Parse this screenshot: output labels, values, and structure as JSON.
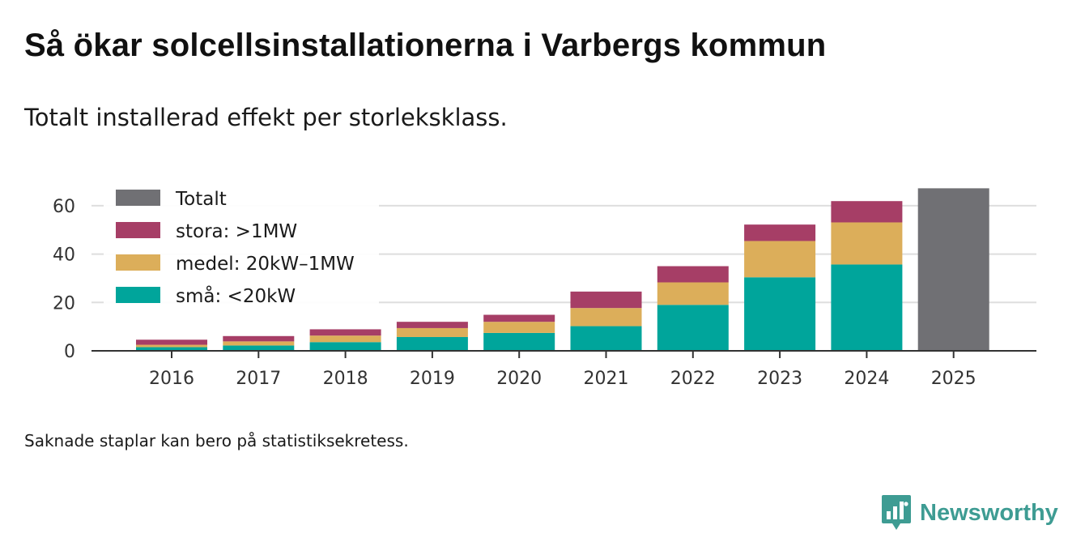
{
  "header": {
    "title": "Så ökar solcellsinstallationerna i Varbergs kommun",
    "subtitle": "Totalt installerad effekt per storleksklass."
  },
  "footer": {
    "note": "Saknade staplar kan bero på statistiksekretess.",
    "brand": "Newsworthy"
  },
  "colors": {
    "sma": "#00a59b",
    "medel": "#dcae5a",
    "stora": "#a63e66",
    "totalt": "#707074",
    "grid": "#dedede",
    "axis": "#333333",
    "brand": "#3e9c93"
  },
  "chart_data": {
    "type": "bar",
    "stacked": true,
    "title": "Så ökar solcellsinstallationerna i Varbergs kommun",
    "subtitle": "Totalt installerad effekt per storleksklass.",
    "xlabel": "",
    "ylabel": "",
    "ylim": [
      0,
      68
    ],
    "yticks": [
      0,
      20,
      40,
      60
    ],
    "grid": true,
    "legend_position": "top-left",
    "categories": [
      "2016",
      "2017",
      "2018",
      "2019",
      "2020",
      "2021",
      "2022",
      "2023",
      "2024",
      "2025"
    ],
    "legend": [
      {
        "key": "totalt",
        "label": "Totalt"
      },
      {
        "key": "stora",
        "label": "stora: >1MW"
      },
      {
        "key": "medel",
        "label": "medel: 20kW–1MW"
      },
      {
        "key": "sma",
        "label": "små: <20kW"
      }
    ],
    "series": [
      {
        "key": "sma",
        "name": "små: <20kW",
        "values": [
          1.5,
          2.2,
          3.6,
          5.7,
          7.4,
          10.2,
          19.0,
          30.4,
          35.7,
          null
        ]
      },
      {
        "key": "medel",
        "name": "medel: 20kW–1MW",
        "values": [
          1.0,
          1.7,
          2.7,
          3.7,
          4.6,
          7.5,
          9.3,
          15.0,
          17.4,
          null
        ]
      },
      {
        "key": "stora",
        "name": "stora: >1MW",
        "values": [
          2.1,
          2.2,
          2.6,
          2.6,
          2.9,
          6.8,
          6.7,
          6.8,
          8.8,
          null
        ]
      },
      {
        "key": "totalt",
        "name": "Totalt",
        "values": [
          null,
          null,
          null,
          null,
          null,
          null,
          null,
          null,
          null,
          67.2
        ]
      }
    ]
  }
}
